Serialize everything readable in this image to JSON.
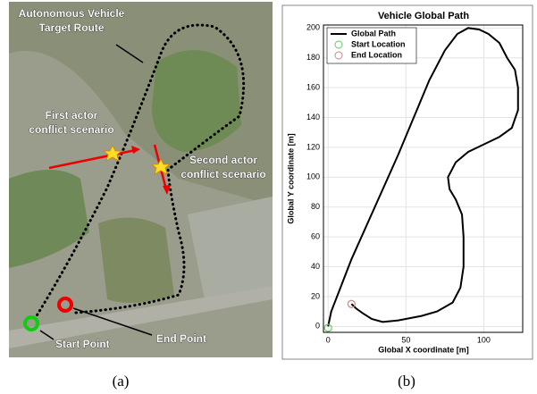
{
  "figure_a": {
    "route_label": [
      "Autonomous Vehicle",
      "Target Route"
    ],
    "first_actor_label": [
      "First actor",
      "conflict scenario"
    ],
    "second_actor_label": [
      "Second actor",
      "conflict scenario"
    ],
    "start_label": "Start Point",
    "end_label": "End Point",
    "caption": "(a)"
  },
  "caption_b": "(b)",
  "chart_data": {
    "type": "line",
    "title": "Vehicle Global Path",
    "xlabel": "Global X coordinate [m]",
    "ylabel": "Global Y coordinate [m]",
    "xlim": [
      -3,
      125
    ],
    "ylim": [
      -4,
      202
    ],
    "xticks": [
      0,
      50,
      100
    ],
    "yticks": [
      0,
      20,
      40,
      60,
      80,
      100,
      120,
      140,
      160,
      180,
      200
    ],
    "grid": true,
    "legend": "upper-left",
    "series": [
      {
        "name": "Global Path",
        "color": "#000000",
        "mode": "line",
        "x": [
          0,
          2,
          15,
          30,
          45,
          55,
          65,
          75,
          83,
          90,
          97,
          103,
          110,
          115,
          120,
          122,
          122,
          118,
          110,
          100,
          90,
          82,
          77,
          78,
          82,
          86,
          87,
          87,
          85,
          80,
          70,
          60,
          45,
          35,
          28,
          22,
          18,
          15
        ],
        "y": [
          0,
          10,
          45,
          80,
          115,
          140,
          165,
          185,
          196,
          200,
          199,
          196,
          190,
          180,
          172,
          160,
          145,
          133,
          127,
          122,
          117,
          110,
          100,
          92,
          85,
          75,
          60,
          40,
          26,
          16,
          10,
          7,
          4,
          3,
          5,
          9,
          12,
          15
        ]
      },
      {
        "name": "Start Location",
        "color": "#66cc66",
        "mode": "marker",
        "x": [
          0
        ],
        "y": [
          -1
        ]
      },
      {
        "name": "End Location",
        "color": "#cc8888",
        "mode": "marker",
        "x": [
          15
        ],
        "y": [
          15
        ]
      }
    ]
  }
}
